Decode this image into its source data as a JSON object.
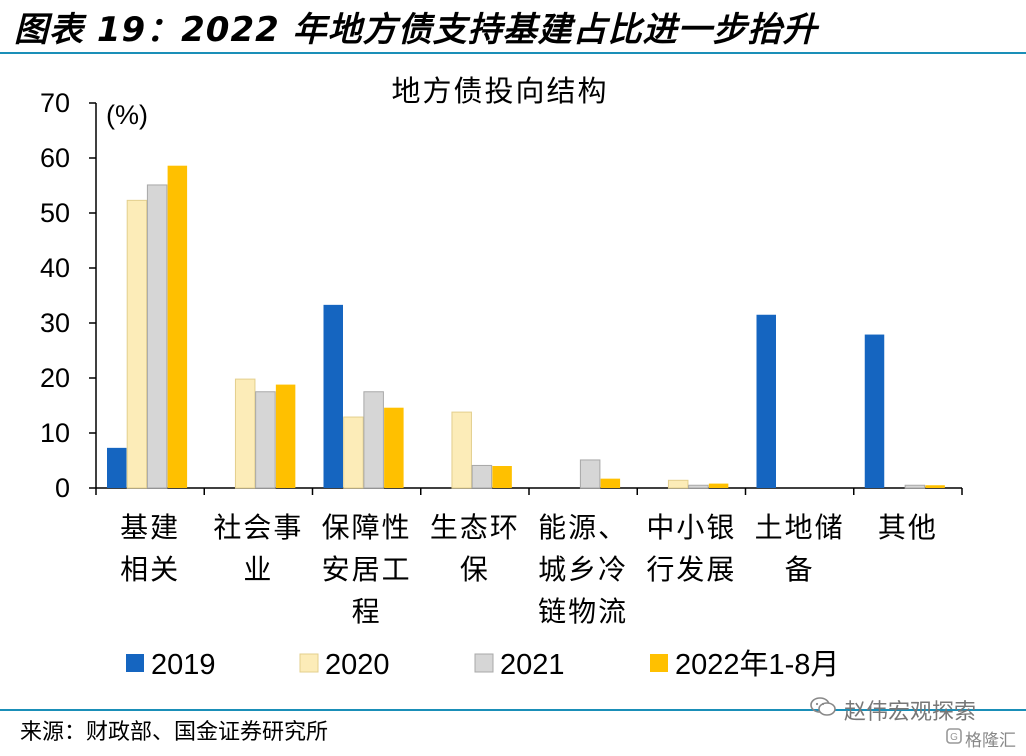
{
  "header": {
    "title": "图表 19：2022 年地方债支持基建占比进一步抬升"
  },
  "footer": {
    "source": "来源：财政部、国金证券研究所"
  },
  "watermark": {
    "text": "赵伟宏观探索",
    "sub": "格隆汇",
    "icon": "wechat-icon",
    "sub_icon": "gelonghui-logo-icon"
  },
  "colors": {
    "rule": "#1a8fb8",
    "2019": "#1565c0",
    "2020": "#fcecb8",
    "2021": "#d6d6d6",
    "2022": "#ffc000"
  },
  "chart_data": {
    "type": "bar",
    "title": "地方债投向结构",
    "ylabel": "(%)",
    "ylim": [
      0,
      70
    ],
    "yticks": [
      0,
      10,
      20,
      30,
      40,
      50,
      60,
      70
    ],
    "grid": false,
    "legend_position": "bottom",
    "categories": [
      [
        "基建",
        "相关"
      ],
      [
        "社会事",
        "业"
      ],
      [
        "保障性",
        "安居工",
        "程"
      ],
      [
        "生态环",
        "保"
      ],
      [
        "能源、",
        "城乡冷",
        "链物流"
      ],
      [
        "中小银",
        "行发展"
      ],
      [
        "土地储",
        "备"
      ],
      [
        "其他"
      ]
    ],
    "series": [
      {
        "name": "2019",
        "values": [
          7.3,
          0,
          33.3,
          0,
          0,
          0,
          31.5,
          27.9
        ]
      },
      {
        "name": "2020",
        "values": [
          52.3,
          19.8,
          12.9,
          13.8,
          0,
          1.4,
          0,
          0
        ]
      },
      {
        "name": "2021",
        "values": [
          55.1,
          17.5,
          17.5,
          4.1,
          5.1,
          0.5,
          0,
          0.5
        ]
      },
      {
        "name": "2022年1-8月",
        "values": [
          58.6,
          18.8,
          14.6,
          4.0,
          1.7,
          0.8,
          0,
          0.5
        ]
      }
    ]
  }
}
